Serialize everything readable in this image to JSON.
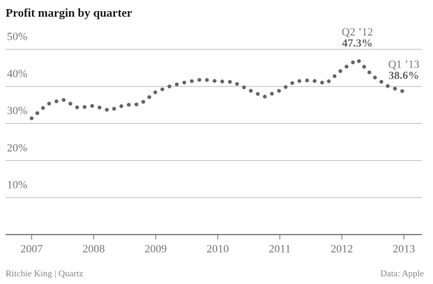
{
  "chart_data": {
    "type": "line",
    "title": "Profit margin by quarter",
    "source": "Ritchie King | Quartz",
    "data_credit": "Data: Apple",
    "x": [
      2007,
      2007.25,
      2007.5,
      2007.75,
      2008,
      2008.25,
      2008.5,
      2008.75,
      2009,
      2009.25,
      2009.5,
      2009.75,
      2010,
      2010.25,
      2010.5,
      2010.75,
      2011,
      2011.25,
      2011.5,
      2011.75,
      2012,
      2012.25,
      2012.5,
      2012.75,
      2013
    ],
    "series": [
      {
        "name": "Profit margin",
        "color": "#666666",
        "line_style": "dotted",
        "values": [
          31.4,
          35.2,
          36.5,
          34.2,
          34.8,
          33.5,
          35.0,
          35.2,
          38.5,
          40.2,
          41.2,
          41.9,
          41.4,
          41.2,
          39.1,
          37.2,
          38.9,
          41.4,
          41.7,
          40.8,
          44.5,
          47.3,
          42.8,
          40.0,
          38.6
        ],
        "point_labels": [
          null,
          null,
          null,
          null,
          null,
          null,
          null,
          null,
          null,
          null,
          null,
          null,
          null,
          null,
          null,
          null,
          null,
          null,
          null,
          null,
          null,
          "Q2 ’12",
          null,
          null,
          "Q1 ’13"
        ],
        "value_labels": [
          null,
          null,
          null,
          null,
          null,
          null,
          null,
          null,
          null,
          null,
          null,
          null,
          null,
          null,
          null,
          null,
          null,
          null,
          null,
          null,
          null,
          "47.3%",
          null,
          null,
          "38.6%"
        ]
      }
    ],
    "xlim": [
      2006.58,
      2013.29
    ],
    "xticks": [
      2007,
      2008,
      2009,
      2010,
      2011,
      2012,
      2013
    ],
    "ylim": [
      0,
      50
    ],
    "yticks": [
      {
        "value": 10,
        "label": "10%"
      },
      {
        "value": 20,
        "label": "20%"
      },
      {
        "value": 30,
        "label": "30%"
      },
      {
        "value": 40,
        "label": "40%"
      },
      {
        "value": 50,
        "label": "50%"
      }
    ],
    "grid": true
  }
}
